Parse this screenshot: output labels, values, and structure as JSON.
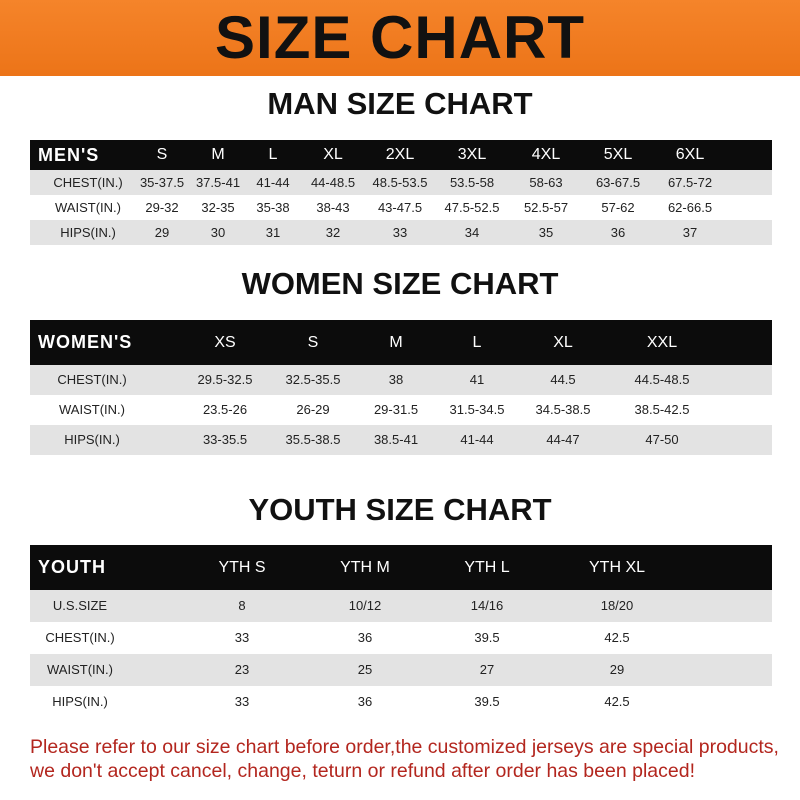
{
  "title": "SIZE CHART",
  "banner_color": "#f07c1f",
  "note_color": "#b3261e",
  "men": {
    "title": "MAN SIZE CHART",
    "headers": [
      "MEN'S",
      "S",
      "M",
      "L",
      "XL",
      "2XL",
      "3XL",
      "4XL",
      "5XL",
      "6XL"
    ],
    "rows": [
      [
        "CHEST(IN.)",
        "35-37.5",
        "37.5-41",
        "41-44",
        "44-48.5",
        "48.5-53.5",
        "53.5-58",
        "58-63",
        "63-67.5",
        "67.5-72"
      ],
      [
        "WAIST(IN.)",
        "29-32",
        "32-35",
        "35-38",
        "38-43",
        "43-47.5",
        "47.5-52.5",
        "52.5-57",
        "57-62",
        "62-66.5"
      ],
      [
        "HIPS(IN.)",
        "29",
        "30",
        "31",
        "32",
        "33",
        "34",
        "35",
        "36",
        "37"
      ]
    ]
  },
  "women": {
    "title": "WOMEN SIZE CHART",
    "headers": [
      "WOMEN'S",
      "XS",
      "S",
      "M",
      "L",
      "XL",
      "XXL"
    ],
    "rows": [
      [
        "CHEST(IN.)",
        "29.5-32.5",
        "32.5-35.5",
        "38",
        "41",
        "44.5",
        "44.5-48.5"
      ],
      [
        "WAIST(IN.)",
        "23.5-26",
        "26-29",
        "29-31.5",
        "31.5-34.5",
        "34.5-38.5",
        "38.5-42.5"
      ],
      [
        "HIPS(IN.)",
        "33-35.5",
        "35.5-38.5",
        "38.5-41",
        "41-44",
        "44-47",
        "47-50"
      ]
    ]
  },
  "youth": {
    "title": "YOUTH SIZE CHART",
    "headers": [
      "YOUTH",
      "YTH S",
      "YTH M",
      "YTH L",
      "YTH XL"
    ],
    "rows": [
      [
        "U.S.SIZE",
        "8",
        "10/12",
        "14/16",
        "18/20"
      ],
      [
        "CHEST(IN.)",
        "33",
        "36",
        "39.5",
        "42.5"
      ],
      [
        "WAIST(IN.)",
        "23",
        "25",
        "27",
        "29"
      ],
      [
        "HIPS(IN.)",
        "33",
        "36",
        "39.5",
        "42.5"
      ]
    ]
  },
  "note": {
    "line1": "Please refer to our size chart before order,the customized jerseys are special products,",
    "line2": "we don't accept cancel, change, teturn or refund after order has been placed!"
  }
}
